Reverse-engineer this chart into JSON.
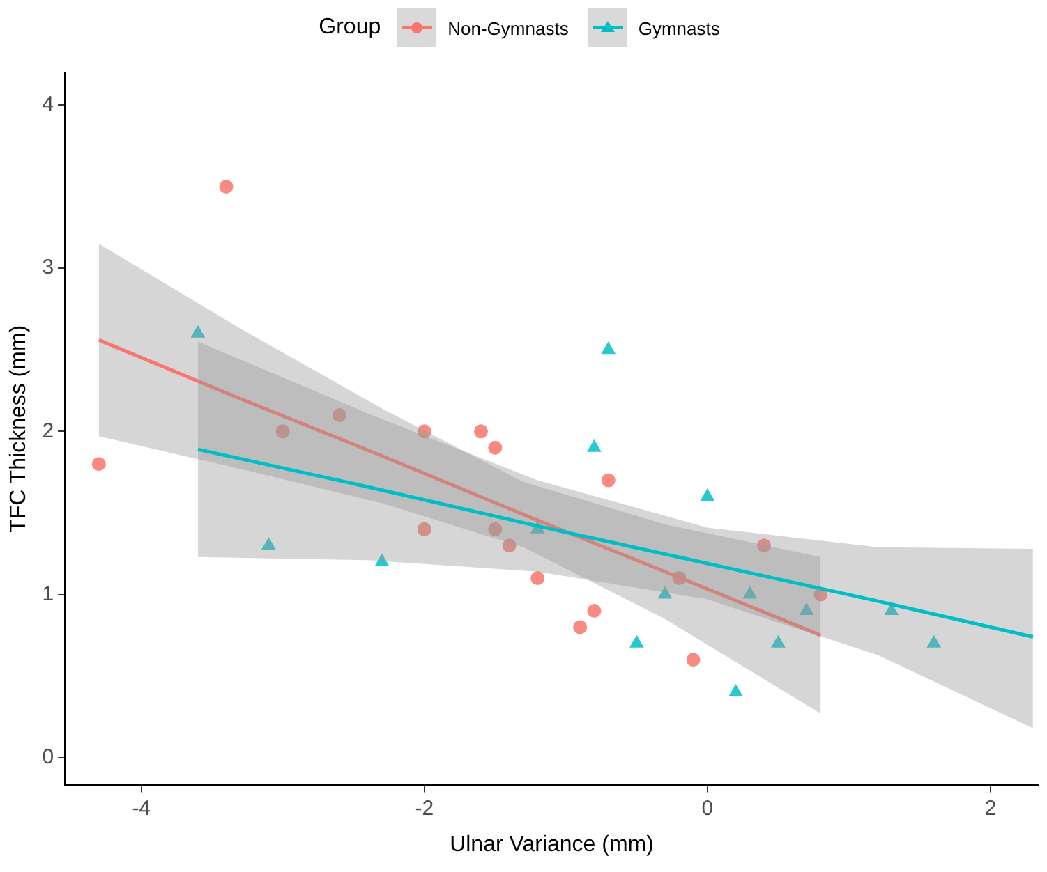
{
  "chart_data": {
    "type": "scatter",
    "xlabel": "Ulnar Variance (mm)",
    "ylabel": "TFC Thickness (mm)",
    "legend_title": "Group",
    "legend": "top",
    "grid": false,
    "xlim": [
      -4.54,
      2.34
    ],
    "xticks": [
      -4,
      -2,
      0,
      2
    ],
    "ylim": [
      -0.17,
      4.2
    ],
    "yticks": [
      0,
      1,
      2,
      3,
      4
    ],
    "series": [
      {
        "name": "Non-Gymnasts",
        "type": "scatter",
        "color": "#f8766d",
        "marker": "circle",
        "x": [
          -4.3,
          -3.4,
          -3.0,
          -2.6,
          -2.0,
          -2.0,
          -1.6,
          -1.5,
          -1.5,
          -1.4,
          -1.2,
          -0.7,
          -0.8,
          -0.9,
          -0.2,
          -0.1,
          0.4,
          0.8
        ],
        "values": [
          1.8,
          3.5,
          2.0,
          2.1,
          2.0,
          1.4,
          2.0,
          1.9,
          1.4,
          1.3,
          1.1,
          1.7,
          0.9,
          0.8,
          1.1,
          0.6,
          1.3,
          1.0
        ]
      },
      {
        "name": "Gymnasts",
        "type": "scatter",
        "color": "#00bfc4",
        "marker": "triangle",
        "x": [
          -3.6,
          -3.1,
          -2.3,
          -1.2,
          -0.7,
          -0.8,
          0.0,
          -0.3,
          0.3,
          0.7,
          1.3,
          1.6,
          -0.5,
          0.5,
          0.2
        ],
        "values": [
          2.6,
          1.3,
          1.2,
          1.4,
          2.5,
          1.9,
          1.6,
          1.0,
          1.0,
          0.9,
          0.9,
          0.7,
          0.7,
          0.7,
          0.4
        ]
      },
      {
        "type": "line",
        "color": "#f8766d",
        "marker": "none",
        "x": [
          -4.3,
          -3.3,
          -2.3,
          -1.3,
          -0.3,
          0.8
        ],
        "values": [
          2.56,
          2.2,
          1.85,
          1.49,
          1.14,
          0.75
        ],
        "lower": [
          1.97,
          1.77,
          1.56,
          1.29,
          0.85,
          0.27
        ],
        "upper": [
          3.15,
          2.63,
          2.14,
          1.69,
          1.43,
          1.23
        ]
      },
      {
        "type": "line",
        "color": "#00bfc4",
        "marker": "none",
        "x": [
          -3.6,
          -2.4,
          -1.2,
          0.0,
          1.2,
          2.3
        ],
        "values": [
          1.89,
          1.66,
          1.42,
          1.19,
          0.96,
          0.74
        ],
        "lower": [
          1.23,
          1.21,
          1.14,
          0.97,
          0.63,
          0.18
        ],
        "upper": [
          2.55,
          2.11,
          1.7,
          1.41,
          1.29,
          1.28
        ]
      }
    ]
  }
}
